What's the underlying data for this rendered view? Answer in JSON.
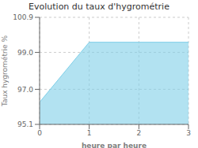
{
  "chart_data": {
    "type": "area",
    "title": "Evolution du taux d'hygrométrie",
    "xlabel": "heure par heure",
    "ylabel": "Taux hygrométrie %",
    "x": [
      0,
      1,
      2,
      3
    ],
    "values": [
      96.3,
      99.55,
      99.55,
      99.55
    ],
    "color": "#7ecfe8",
    "xlim": [
      0,
      3
    ],
    "ylim": [
      95.1,
      100.9
    ],
    "xticks": [
      0,
      1,
      2,
      3
    ],
    "yticks": [
      95.1,
      {
        "value": 97.0,
        "label": "97.0"
      },
      {
        "value": 99.0,
        "label": "99.0"
      },
      100.9
    ],
    "grid": true
  }
}
